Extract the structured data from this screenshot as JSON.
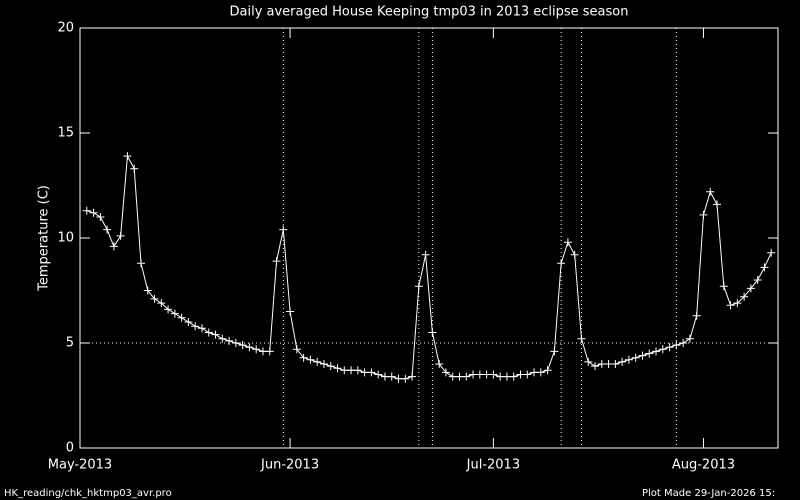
{
  "chart_data": {
    "type": "line",
    "title": "Daily averaged House Keeping tmp03 in 2013 eclipse season",
    "ylabel": "Temperature (C)",
    "footer_left": "HK_reading/chk_hktmp03_avr.pro",
    "footer_right": "Plot Made 29-Jan-2026 15:",
    "color": "#ffffff",
    "marker": "plus",
    "x": [
      122,
      123,
      124,
      125,
      126,
      127,
      128,
      129,
      130,
      131,
      132,
      133,
      134,
      135,
      136,
      137,
      138,
      139,
      140,
      141,
      142,
      143,
      144,
      145,
      146,
      147,
      148,
      149,
      150,
      151,
      152,
      153,
      154,
      155,
      156,
      157,
      158,
      159,
      160,
      161,
      162,
      163,
      164,
      165,
      166,
      167,
      168,
      169,
      170,
      171,
      172,
      173,
      174,
      175,
      176,
      177,
      178,
      179,
      180,
      181,
      182,
      183,
      184,
      185,
      186,
      187,
      188,
      189,
      190,
      191,
      192,
      193,
      194,
      195,
      196,
      197,
      198,
      199,
      200,
      201,
      202,
      203,
      204,
      205,
      206,
      207,
      208,
      209,
      210,
      211,
      212,
      213,
      214,
      215,
      216,
      217,
      218,
      219,
      220,
      221,
      222,
      223
    ],
    "values": [
      11.3,
      11.2,
      11.0,
      10.4,
      9.6,
      10.1,
      13.9,
      13.3,
      8.8,
      7.5,
      7.1,
      6.9,
      6.6,
      6.4,
      6.2,
      6.0,
      5.8,
      5.7,
      5.5,
      5.4,
      5.2,
      5.1,
      5.0,
      4.9,
      4.8,
      4.7,
      4.6,
      4.6,
      8.9,
      10.4,
      6.5,
      4.7,
      4.3,
      4.2,
      4.1,
      4.0,
      3.9,
      3.8,
      3.7,
      3.7,
      3.7,
      3.6,
      3.6,
      3.5,
      3.4,
      3.4,
      3.3,
      3.3,
      3.4,
      7.7,
      9.2,
      5.5,
      4.0,
      3.6,
      3.4,
      3.4,
      3.4,
      3.5,
      3.5,
      3.5,
      3.5,
      3.4,
      3.4,
      3.4,
      3.5,
      3.5,
      3.6,
      3.6,
      3.7,
      4.6,
      8.8,
      9.8,
      9.2,
      5.2,
      4.1,
      3.9,
      4.0,
      4.0,
      4.0,
      4.1,
      4.2,
      4.3,
      4.4,
      4.5,
      4.6,
      4.7,
      4.8,
      4.9,
      5.0,
      5.2,
      6.3,
      11.1,
      12.2,
      11.6,
      7.7,
      6.8,
      6.9,
      7.2,
      7.6,
      8.0,
      8.6,
      9.3
    ],
    "xlim": [
      121,
      224
    ],
    "xticks": [
      {
        "value": 121,
        "label": "May-2013"
      },
      {
        "value": 152,
        "label": "Jun-2013"
      },
      {
        "value": 182,
        "label": "Jul-2013"
      },
      {
        "value": 213,
        "label": "Aug-2013"
      }
    ],
    "ylim": [
      0,
      20
    ],
    "yticks": [
      0,
      5,
      10,
      15,
      20
    ],
    "vlines": [
      151,
      171,
      173,
      192,
      195,
      209
    ],
    "hlines": [
      5
    ]
  }
}
